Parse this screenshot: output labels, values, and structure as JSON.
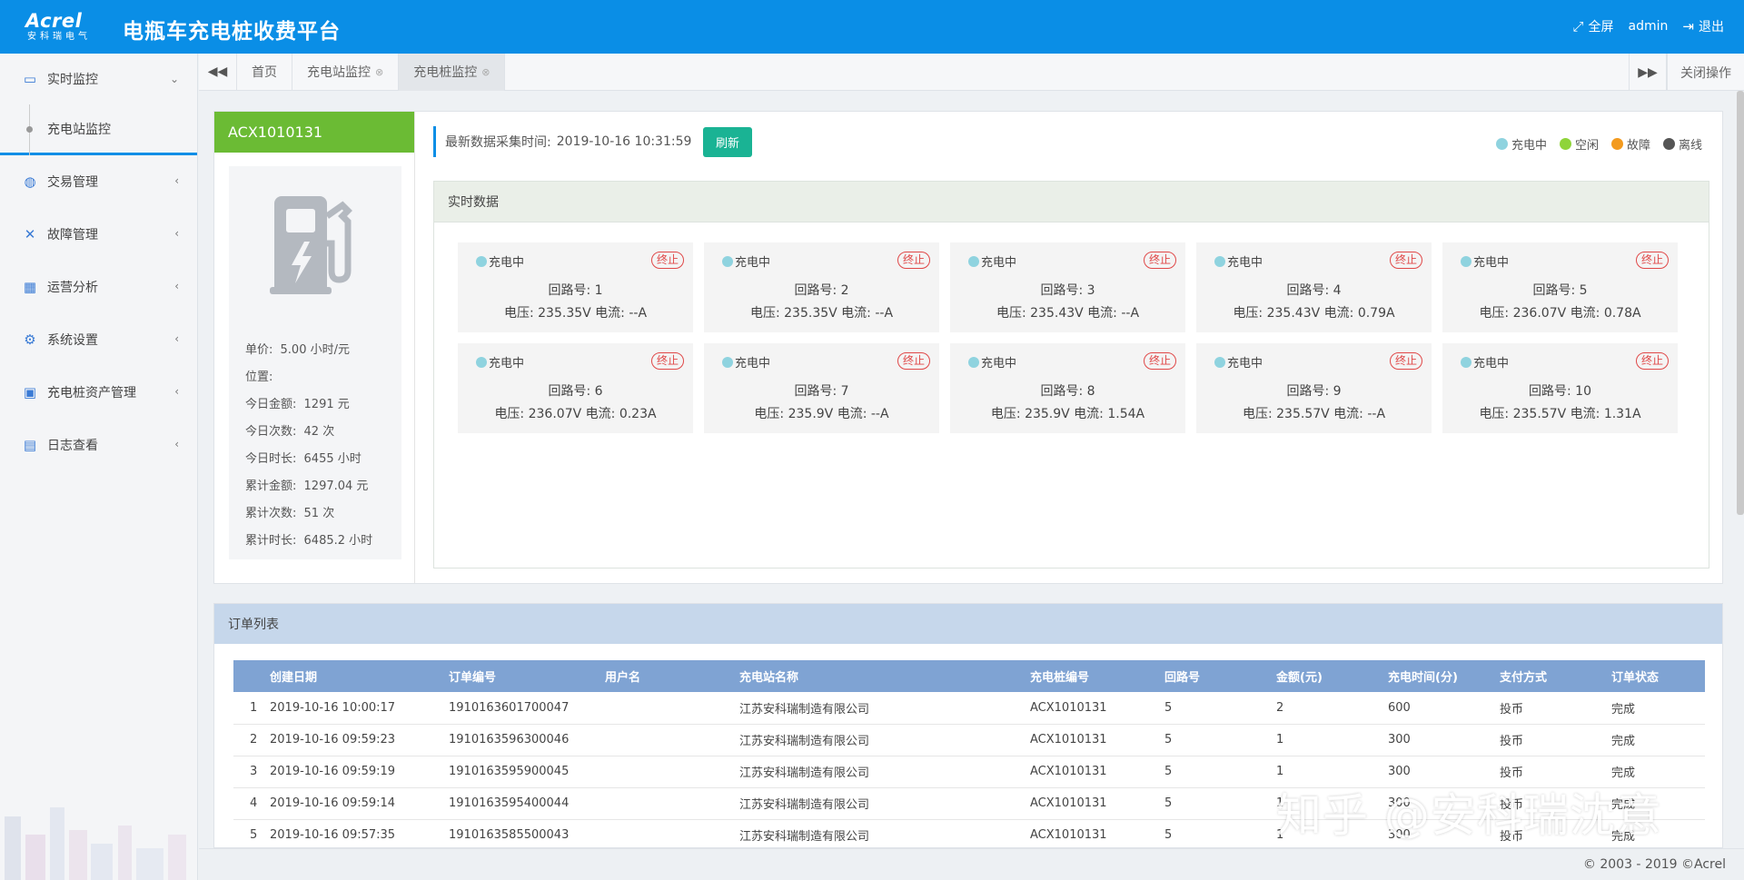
{
  "header": {
    "logo_text": "Acrel",
    "logo_sub": "安科瑞电气",
    "title": "电瓶车充电桩收费平台",
    "fullscreen": "全屏",
    "user": "admin",
    "logout": "退出"
  },
  "sidebar": {
    "items": [
      {
        "label": "实时监控",
        "icon": "monitor-icon"
      },
      {
        "label": "交易管理",
        "icon": "trade-icon"
      },
      {
        "label": "故障管理",
        "icon": "wrench-icon"
      },
      {
        "label": "运营分析",
        "icon": "calendar-icon"
      },
      {
        "label": "系统设置",
        "icon": "gear-icon"
      },
      {
        "label": "充电桩资产管理",
        "icon": "asset-icon"
      },
      {
        "label": "日志查看",
        "icon": "log-icon"
      }
    ],
    "sub_item": "充电站监控"
  },
  "tabs": [
    {
      "label": "首页"
    },
    {
      "label": "充电站监控"
    },
    {
      "label": "充电桩监控"
    }
  ],
  "tab_close_ops": "关闭操作",
  "device": {
    "id": "ACX1010131",
    "unit_price_label": "单价:",
    "unit_price": "5.00 小时/元",
    "location_label": "位置:",
    "location": "",
    "today_amount_label": "今日金额:",
    "today_amount": "1291 元",
    "today_count_label": "今日次数:",
    "today_count": "42 次",
    "today_duration_label": "今日时长:",
    "today_duration": "6455 小时",
    "total_amount_label": "累计金额:",
    "total_amount": "1297.04 元",
    "total_count_label": "累计次数:",
    "total_count": "51 次",
    "total_duration_label": "累计时长:",
    "total_duration": "6485.2 小时"
  },
  "update": {
    "label": "最新数据采集时间:",
    "time": "2019-10-16 10:31:59",
    "refresh": "刷新"
  },
  "legend": [
    {
      "label": "充电中",
      "color": "#8fd3df"
    },
    {
      "label": "空闲",
      "color": "#8fd43a"
    },
    {
      "label": "故障",
      "color": "#f39a1e"
    },
    {
      "label": "离线",
      "color": "#555555"
    }
  ],
  "realtime": {
    "title": "实时数据",
    "status_text": "充电中",
    "stop_text": "终止",
    "loop_label": "回路号:",
    "voltage_label": "电压:",
    "current_label": "电流:",
    "circuits": [
      {
        "loop": "1",
        "voltage": "235.35V",
        "current": "--A"
      },
      {
        "loop": "2",
        "voltage": "235.35V",
        "current": "--A"
      },
      {
        "loop": "3",
        "voltage": "235.43V",
        "current": "--A"
      },
      {
        "loop": "4",
        "voltage": "235.43V",
        "current": "0.79A"
      },
      {
        "loop": "5",
        "voltage": "236.07V",
        "current": "0.78A"
      },
      {
        "loop": "6",
        "voltage": "236.07V",
        "current": "0.23A"
      },
      {
        "loop": "7",
        "voltage": "235.9V",
        "current": "--A"
      },
      {
        "loop": "8",
        "voltage": "235.9V",
        "current": "1.54A"
      },
      {
        "loop": "9",
        "voltage": "235.57V",
        "current": "--A"
      },
      {
        "loop": "10",
        "voltage": "235.57V",
        "current": "1.31A"
      }
    ]
  },
  "orders": {
    "title": "订单列表",
    "columns": [
      "",
      "创建日期",
      "订单编号",
      "用户名",
      "充电站名称",
      "充电桩编号",
      "回路号",
      "金额(元)",
      "充电时间(分)",
      "支付方式",
      "订单状态"
    ],
    "rows": [
      [
        "1",
        "2019-10-16 10:00:17",
        "1910163601700047",
        "",
        "江苏安科瑞制造有限公司",
        "ACX1010131",
        "5",
        "2",
        "600",
        "投币",
        "完成"
      ],
      [
        "2",
        "2019-10-16 09:59:23",
        "1910163596300046",
        "",
        "江苏安科瑞制造有限公司",
        "ACX1010131",
        "5",
        "1",
        "300",
        "投币",
        "完成"
      ],
      [
        "3",
        "2019-10-16 09:59:19",
        "1910163595900045",
        "",
        "江苏安科瑞制造有限公司",
        "ACX1010131",
        "5",
        "1",
        "300",
        "投币",
        "完成"
      ],
      [
        "4",
        "2019-10-16 09:59:14",
        "1910163595400044",
        "",
        "江苏安科瑞制造有限公司",
        "ACX1010131",
        "5",
        "1",
        "300",
        "投币",
        "完成"
      ],
      [
        "5",
        "2019-10-16 09:57:35",
        "1910163585500043",
        "",
        "江苏安科瑞制造有限公司",
        "ACX1010131",
        "5",
        "1",
        "300",
        "投币",
        "完成"
      ]
    ]
  },
  "footer": "© 2003 - 2019 ©Acrel",
  "watermark": "知乎 @安科瑞沈意"
}
